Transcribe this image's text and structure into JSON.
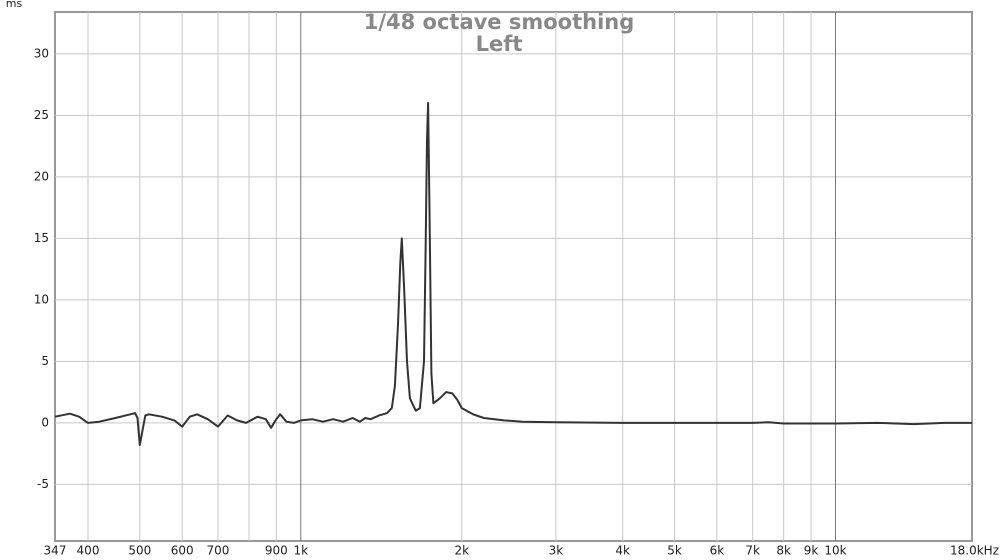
{
  "chart_data": {
    "type": "line",
    "title": "1/48 octave smoothing",
    "subtitle": "Left",
    "y_label": "ms",
    "xscale": "log",
    "grid": true,
    "x": [
      347,
      370,
      385,
      400,
      420,
      450,
      480,
      490,
      495,
      500,
      505,
      512,
      520,
      550,
      580,
      600,
      620,
      640,
      670,
      700,
      730,
      760,
      790,
      830,
      860,
      880,
      900,
      915,
      940,
      970,
      1000,
      1050,
      1100,
      1150,
      1200,
      1250,
      1290,
      1320,
      1350,
      1400,
      1450,
      1480,
      1500,
      1520,
      1535,
      1545,
      1560,
      1580,
      1600,
      1640,
      1670,
      1700,
      1712,
      1722,
      1730,
      1740,
      1755,
      1770,
      1820,
      1870,
      1920,
      1960,
      2000,
      2100,
      2200,
      2400,
      2600,
      3000,
      4000,
      5000,
      6000,
      7000,
      7500,
      8000,
      10000,
      12000,
      14000,
      16000,
      18000
    ],
    "series": [
      {
        "name": "Left",
        "color": "#333333",
        "values": [
          0.5,
          0.75,
          0.5,
          0,
          0.1,
          0.4,
          0.7,
          0.8,
          0.4,
          -1.8,
          -0.8,
          0.6,
          0.7,
          0.5,
          0.2,
          -0.3,
          0.5,
          0.7,
          0.3,
          -0.3,
          0.6,
          0.2,
          0,
          0.5,
          0.3,
          -0.4,
          0.3,
          0.7,
          0.1,
          0,
          0.2,
          0.3,
          0.1,
          0.3,
          0.1,
          0.4,
          0.1,
          0.4,
          0.3,
          0.6,
          0.8,
          1.2,
          3,
          8,
          13,
          15,
          11,
          5,
          2,
          1.0,
          1.2,
          5,
          14,
          23,
          26,
          18,
          4,
          1.6,
          2,
          2.5,
          2.4,
          1.9,
          1.2,
          0.7,
          0.4,
          0.2,
          0.1,
          0.05,
          0,
          0,
          0,
          0,
          0.05,
          -0.05,
          -0.05,
          0,
          -0.1,
          0,
          0
        ]
      }
    ],
    "xlim": [
      347,
      18000
    ],
    "ylim": [
      -9.6,
      33.4
    ],
    "xticks": [
      347,
      400,
      500,
      600,
      700,
      900,
      {
        "value": 1000,
        "label": "1k"
      },
      {
        "value": 2000,
        "label": "2k"
      },
      {
        "value": 3000,
        "label": "3k"
      },
      {
        "value": 4000,
        "label": "4k"
      },
      {
        "value": 5000,
        "label": "5k"
      },
      {
        "value": 6000,
        "label": "6k"
      },
      {
        "value": 7000,
        "label": "7k"
      },
      {
        "value": 8000,
        "label": "8k"
      },
      {
        "value": 9000,
        "label": "9k"
      },
      {
        "value": 10000,
        "label": "10k"
      },
      {
        "value": 18000,
        "label": "18.0kHz"
      }
    ],
    "xminor": [
      800
    ],
    "xmajor": [
      1000,
      10000
    ],
    "yticks": [
      -5,
      0,
      5,
      10,
      15,
      20,
      25,
      30
    ]
  }
}
